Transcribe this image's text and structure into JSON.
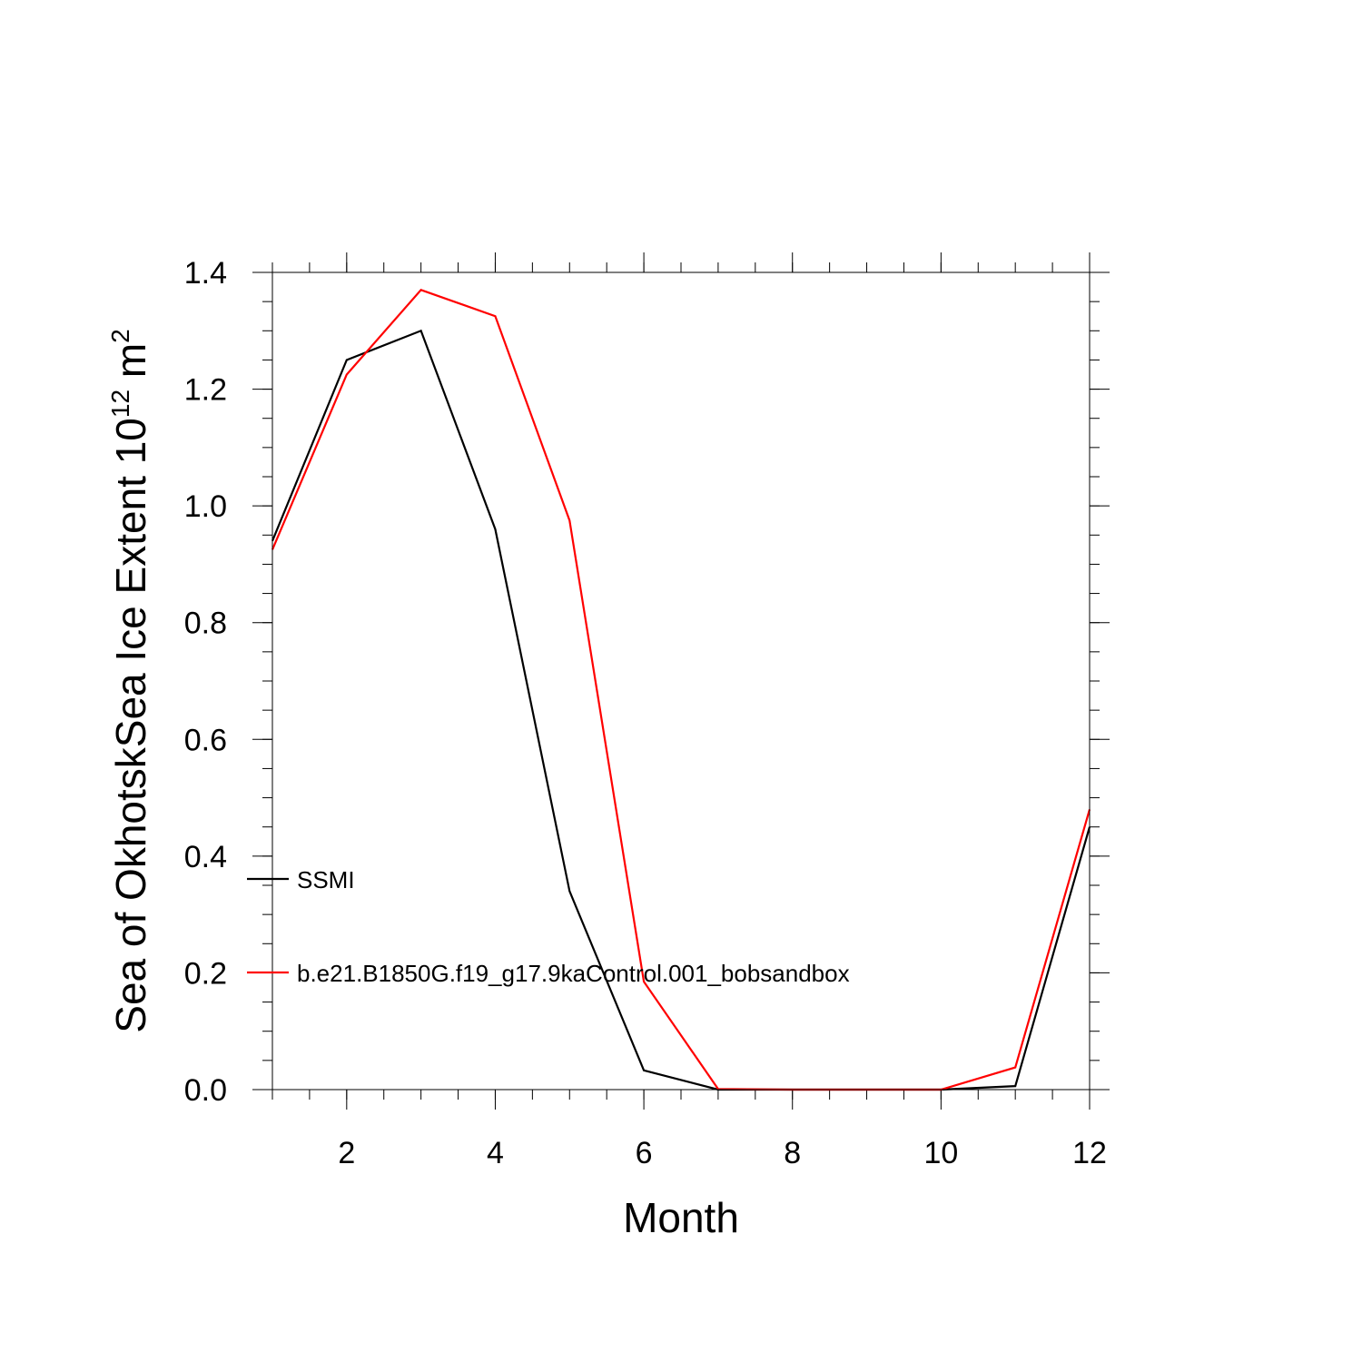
{
  "chart_data": {
    "type": "line",
    "xlabel": "Month",
    "ylabel_main": "Sea of OkhotskSea Ice Extent 10",
    "ylabel_exp": "12",
    "ylabel_unit": " m",
    "ylabel_unit_exp": "2",
    "xlim": [
      1,
      12
    ],
    "ylim": [
      0.0,
      1.4
    ],
    "x_ticks": [
      2,
      4,
      6,
      8,
      10,
      12
    ],
    "x_tick_labels": [
      "2",
      "4",
      "6",
      "8",
      "10",
      "12"
    ],
    "y_ticks": [
      0.0,
      0.2,
      0.4,
      0.6,
      0.8,
      1.0,
      1.2,
      1.4
    ],
    "y_tick_labels": [
      "0.0",
      "0.2",
      "0.4",
      "0.6",
      "0.8",
      "1.0",
      "1.2",
      "1.4"
    ],
    "grid": false,
    "legend_position": "left-inside",
    "x": [
      1,
      2,
      3,
      4,
      5,
      6,
      7,
      8,
      9,
      10,
      11,
      12
    ],
    "series": [
      {
        "name": "SSMI",
        "color": "#000000",
        "values": [
          0.94,
          1.25,
          1.3,
          0.96,
          0.34,
          0.033,
          0.0,
          0.0,
          0.0,
          0.0,
          0.006,
          0.45
        ]
      },
      {
        "name": "b.e21.B1850G.f19_g17.9kaControl.001_bobsandbox",
        "color": "#ff0000",
        "values": [
          0.925,
          1.225,
          1.37,
          1.325,
          0.975,
          0.185,
          0.001,
          0.0,
          0.0,
          0.0,
          0.038,
          0.48
        ]
      }
    ]
  }
}
